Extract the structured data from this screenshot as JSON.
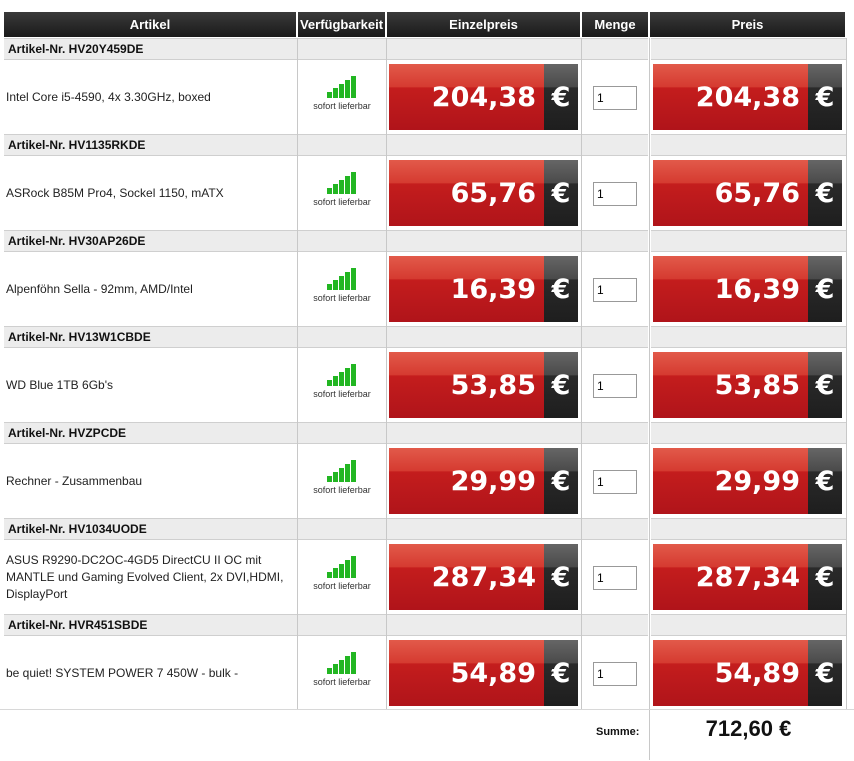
{
  "headers": {
    "artikel": "Artikel",
    "verfuegbarkeit": "Verfügbarkeit",
    "einzelpreis": "Einzelpreis",
    "menge": "Menge",
    "preis": "Preis"
  },
  "items": [
    {
      "article_no": "Artikel-Nr. HV20Y459DE",
      "name": "Intel Core i5-4590, 4x 3.30GHz, boxed",
      "availability": "sofort lieferbar",
      "unit_price": "204,38",
      "quantity": "1",
      "total": "204,38",
      "currency": "€"
    },
    {
      "article_no": "Artikel-Nr. HV1135RKDE",
      "name": "ASRock B85M Pro4, Sockel 1150, mATX",
      "availability": "sofort lieferbar",
      "unit_price": "65,76",
      "quantity": "1",
      "total": "65,76",
      "currency": "€"
    },
    {
      "article_no": "Artikel-Nr. HV30AP26DE",
      "name": "Alpenföhn Sella - 92mm, AMD/Intel",
      "availability": "sofort lieferbar",
      "unit_price": "16,39",
      "quantity": "1",
      "total": "16,39",
      "currency": "€"
    },
    {
      "article_no": "Artikel-Nr. HV13W1CBDE",
      "name": "WD Blue 1TB 6Gb's",
      "availability": "sofort lieferbar",
      "unit_price": "53,85",
      "quantity": "1",
      "total": "53,85",
      "currency": "€"
    },
    {
      "article_no": "Artikel-Nr. HVZPCDE",
      "name": "Rechner - Zusammenbau",
      "availability": "sofort lieferbar",
      "unit_price": "29,99",
      "quantity": "1",
      "total": "29,99",
      "currency": "€"
    },
    {
      "article_no": "Artikel-Nr. HV1034UODE",
      "name": "ASUS R9290-DC2OC-4GD5 DirectCU II OC mit MANTLE und Gaming Evolved Client, 2x DVI,HDMI, DisplayPort",
      "availability": "sofort lieferbar",
      "unit_price": "287,34",
      "quantity": "1",
      "total": "287,34",
      "currency": "€"
    },
    {
      "article_no": "Artikel-Nr. HVR451SBDE",
      "name": "be quiet! SYSTEM POWER 7 450W - bulk -",
      "availability": "sofort lieferbar",
      "unit_price": "54,89",
      "quantity": "1",
      "total": "54,89",
      "currency": "€"
    }
  ],
  "summary": {
    "label": "Summe:",
    "value": "712,60 €"
  },
  "colors": {
    "header_bg": "#1a1a1a",
    "price_red": "#c41d1d",
    "availability_green": "#22b622"
  }
}
